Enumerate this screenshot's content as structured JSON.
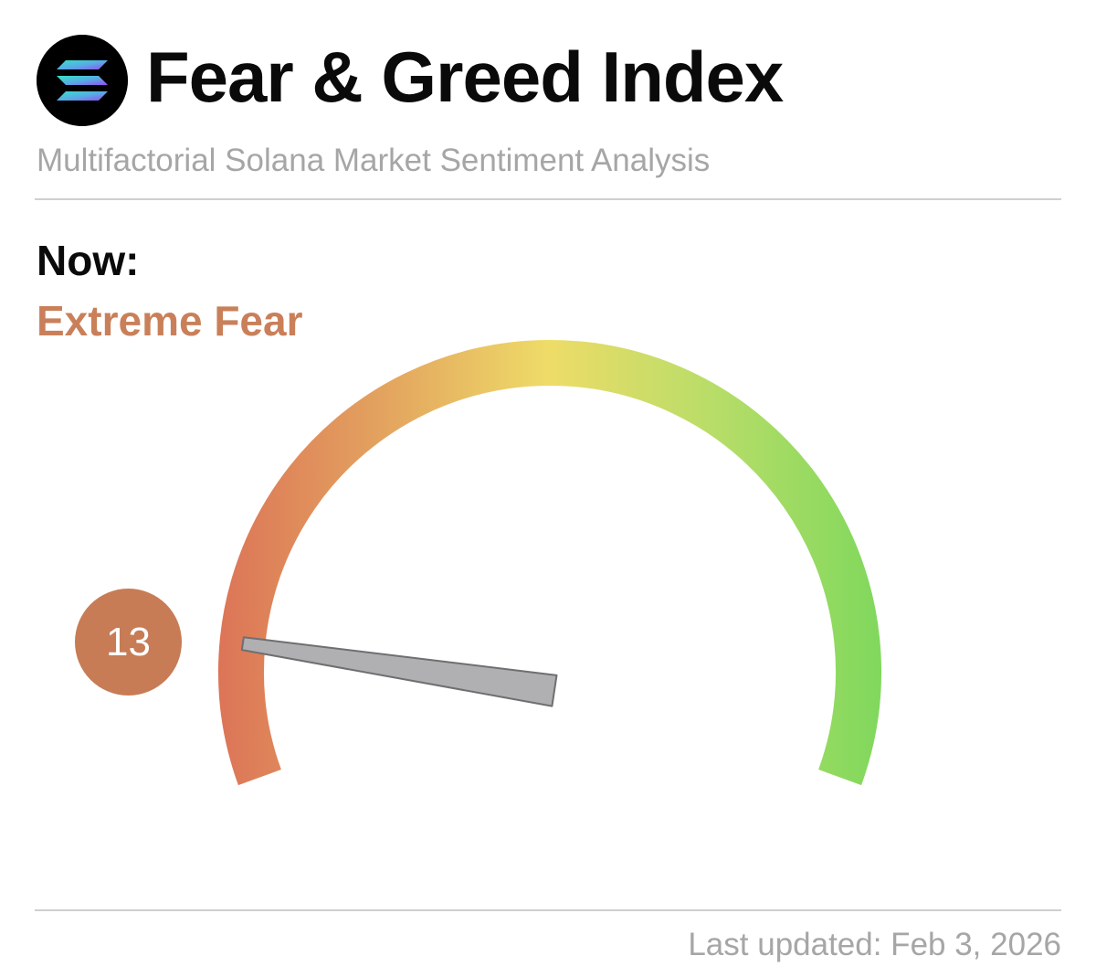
{
  "header": {
    "logo_icon": "solana-logo-icon",
    "title": "Fear & Greed Index",
    "subtitle": "Multifactorial Solana Market Sentiment Analysis"
  },
  "current": {
    "label": "Now:",
    "status": "Extreme Fear",
    "value": 13,
    "value_text": "13",
    "status_color": "#c9805a"
  },
  "gauge": {
    "min": 0,
    "max": 100,
    "gradient_colors": [
      "#dc7457",
      "#e3a35f",
      "#eedc68",
      "#b7dd68",
      "#80d85d"
    ]
  },
  "footer": {
    "last_updated": "Last updated: Feb 3, 2026"
  }
}
